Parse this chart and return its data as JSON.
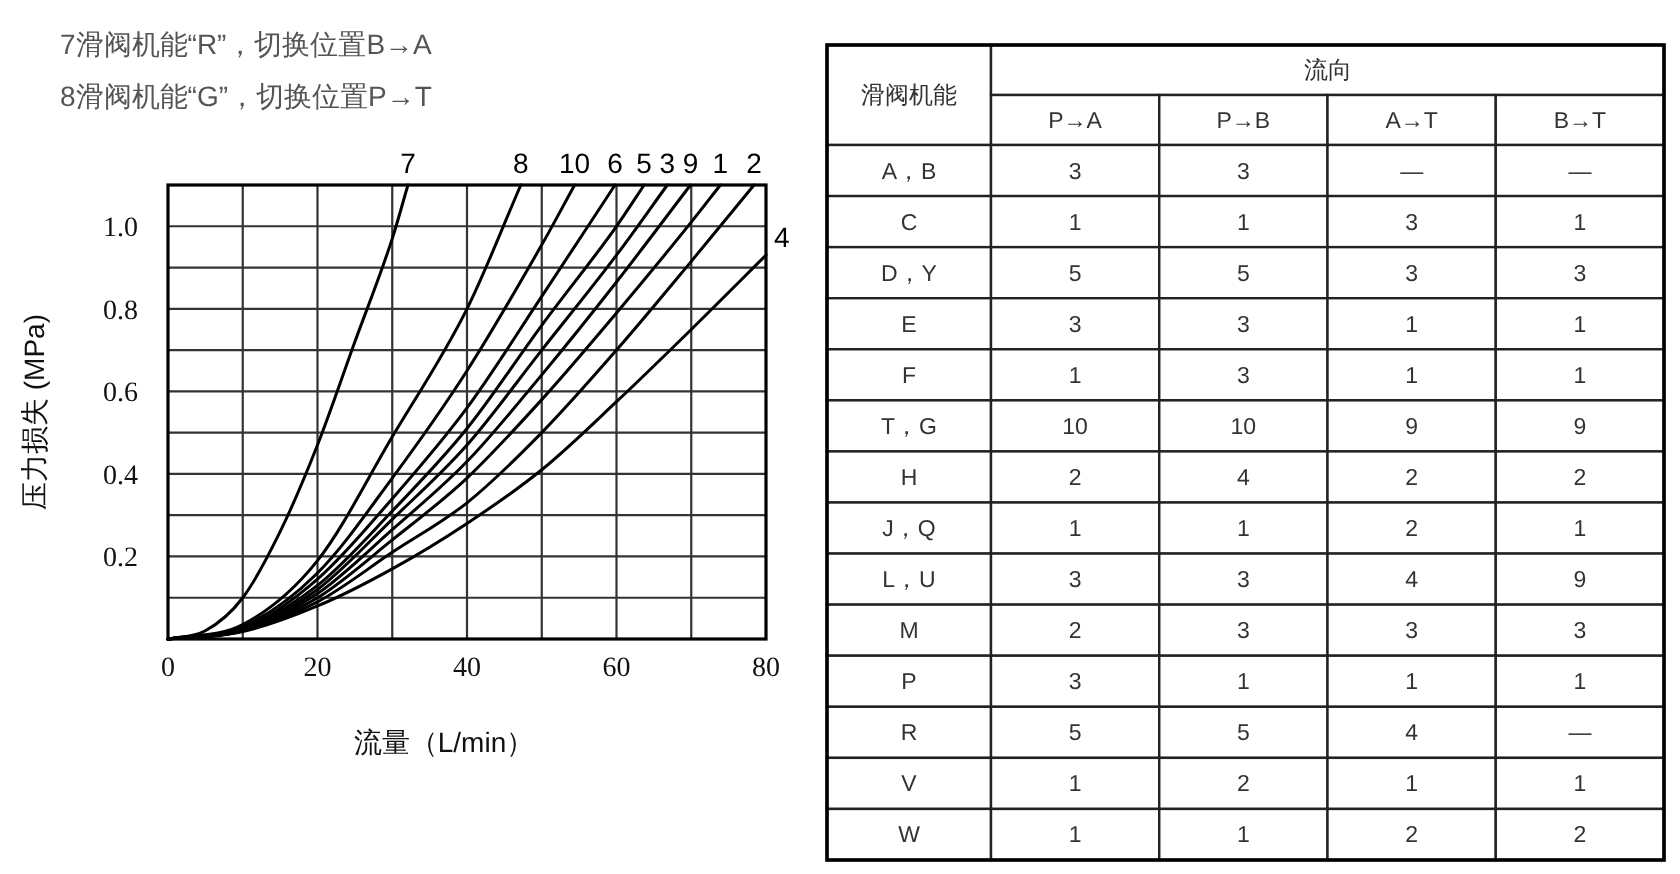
{
  "chart_data": [
    {
      "type": "line",
      "xlabel": "流量（L/min）",
      "ylabel": "压力损失 (MPa)",
      "annotations": [
        "7滑阀机能“R”，切换位置B→A",
        "8滑阀机能“G”，切换位置P→T"
      ],
      "xlim": [
        0,
        80
      ],
      "ylim": [
        0,
        1.1
      ],
      "xticks": [
        0,
        {
          "value": 10,
          "label": null
        },
        20,
        {
          "value": 30,
          "label": null
        },
        40,
        {
          "value": 50,
          "label": null
        },
        60,
        {
          "value": 70,
          "label": null
        },
        80
      ],
      "yticks": [
        {
          "value": 0,
          "label": null
        },
        {
          "value": 0.1,
          "label": null
        },
        0.2,
        {
          "value": 0.3,
          "label": null
        },
        0.4,
        {
          "value": 0.5,
          "label": null
        },
        0.6,
        {
          "value": 0.7,
          "label": null
        },
        0.8,
        {
          "value": 0.9,
          "label": null
        },
        {
          "value": 1.0,
          "label": "1.0"
        },
        {
          "value": 1.1,
          "label": null
        }
      ],
      "grid": true,
      "series": [
        {
          "name": "7",
          "color": "#000000",
          "x": [
            0,
            5,
            10,
            15,
            20,
            25,
            30,
            32.1
          ],
          "values": [
            0,
            0.02,
            0.1,
            0.26,
            0.47,
            0.72,
            0.97,
            1.1
          ]
        },
        {
          "name": "8",
          "color": "#000000",
          "x": [
            0,
            10,
            20,
            30,
            40,
            47.2
          ],
          "values": [
            0,
            0.035,
            0.19,
            0.49,
            0.8,
            1.1
          ]
        },
        {
          "name": "10",
          "color": "#000000",
          "x": [
            0,
            10,
            20,
            30,
            40,
            50,
            54.4
          ],
          "values": [
            0,
            0.03,
            0.16,
            0.39,
            0.65,
            0.955,
            1.1
          ]
        },
        {
          "name": "6",
          "color": "#000000",
          "x": [
            0,
            10,
            20,
            30,
            40,
            50,
            59.8
          ],
          "values": [
            0,
            0.025,
            0.145,
            0.34,
            0.56,
            0.83,
            1.1
          ]
        },
        {
          "name": "5",
          "color": "#000000",
          "x": [
            0,
            10,
            20,
            30,
            40,
            50,
            60,
            63.7
          ],
          "values": [
            0,
            0.025,
            0.13,
            0.31,
            0.51,
            0.76,
            1.0,
            1.1
          ]
        },
        {
          "name": "3",
          "color": "#000000",
          "x": [
            0,
            10,
            20,
            30,
            40,
            50,
            60,
            66.8
          ],
          "values": [
            0,
            0.022,
            0.12,
            0.29,
            0.47,
            0.7,
            0.93,
            1.1
          ]
        },
        {
          "name": "9",
          "color": "#000000",
          "x": [
            0,
            10,
            20,
            30,
            40,
            50,
            60,
            69.9
          ],
          "values": [
            0,
            0.02,
            0.11,
            0.265,
            0.43,
            0.64,
            0.865,
            1.1
          ]
        },
        {
          "name": "1",
          "color": "#000000",
          "x": [
            0,
            10,
            20,
            30,
            40,
            50,
            60,
            70,
            73.9
          ],
          "values": [
            0,
            0.02,
            0.1,
            0.24,
            0.39,
            0.58,
            0.79,
            1.01,
            1.1
          ]
        },
        {
          "name": "2",
          "color": "#000000",
          "x": [
            0,
            10,
            20,
            30,
            40,
            50,
            60,
            70,
            78.4
          ],
          "values": [
            0,
            0.02,
            0.09,
            0.21,
            0.33,
            0.5,
            0.7,
            0.915,
            1.1
          ]
        },
        {
          "name": "4",
          "color": "#000000",
          "x": [
            0,
            10,
            20,
            30,
            40,
            50,
            60,
            70,
            80
          ],
          "values": [
            0,
            0.018,
            0.08,
            0.17,
            0.28,
            0.41,
            0.575,
            0.75,
            0.93
          ]
        }
      ]
    },
    {
      "type": "heatmap",
      "xlabel": "流向",
      "ylabel": "滑阀机能",
      "data_labels": true,
      "categories": [
        "P→A",
        "P→B",
        "A→T",
        "B→T"
      ],
      "y_categories": [
        "A，B",
        "C",
        "D，Y",
        "E",
        "F",
        "T，G",
        "H",
        "J，Q",
        "L，U",
        "M",
        "P",
        "R",
        "V",
        "W"
      ],
      "cells": [
        [
          null,
          null,
          null,
          null
        ],
        [
          null,
          null,
          null,
          null
        ],
        [
          null,
          null,
          null,
          null
        ],
        [
          null,
          null,
          null,
          null
        ],
        [
          null,
          null,
          null,
          null
        ],
        [
          null,
          null,
          null,
          null
        ],
        [
          null,
          null,
          null,
          null
        ],
        [
          null,
          null,
          null,
          null
        ],
        [
          null,
          null,
          null,
          null
        ],
        [
          null,
          null,
          null,
          null
        ],
        [
          null,
          null,
          null,
          null
        ],
        [
          null,
          null,
          null,
          null
        ],
        [
          null,
          null,
          null,
          null
        ],
        [
          null,
          null,
          null,
          null
        ]
      ],
      "cell_labels": [
        [
          "3",
          "3",
          "—",
          "—"
        ],
        [
          "1",
          "1",
          "3",
          "1"
        ],
        [
          "5",
          "5",
          "3",
          "3"
        ],
        [
          "3",
          "3",
          "1",
          "1"
        ],
        [
          "1",
          "3",
          "1",
          "1"
        ],
        [
          "10",
          "10",
          "9",
          "9"
        ],
        [
          "2",
          "4",
          "2",
          "2"
        ],
        [
          "1",
          "1",
          "2",
          "1"
        ],
        [
          "3",
          "3",
          "4",
          "9"
        ],
        [
          "2",
          "3",
          "3",
          "3"
        ],
        [
          "3",
          "1",
          "1",
          "1"
        ],
        [
          "5",
          "5",
          "4",
          "—"
        ],
        [
          "1",
          "2",
          "1",
          "1"
        ],
        [
          "1",
          "1",
          "2",
          "2"
        ]
      ]
    }
  ]
}
